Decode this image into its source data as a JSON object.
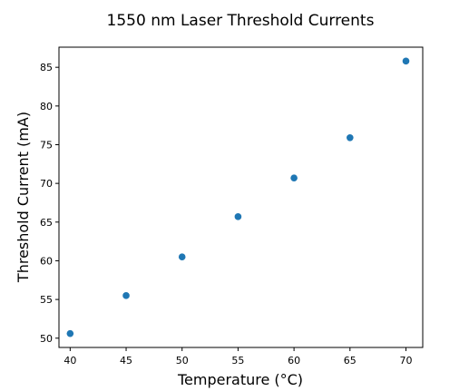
{
  "chart_data": {
    "type": "scatter",
    "title": "1550 nm Laser Threshold Currents",
    "xlabel": "Temperature (°C)",
    "ylabel": "Threshold Current (mA)",
    "xlim": [
      39,
      71.5
    ],
    "ylim": [
      48.8,
      87.6
    ],
    "xticks": [
      40,
      45,
      50,
      55,
      60,
      65,
      70
    ],
    "yticks": [
      50,
      55,
      60,
      65,
      70,
      75,
      80,
      85
    ],
    "grid": false,
    "series": [
      {
        "color": "#1f77b4",
        "x": [
          40,
          45,
          50,
          55,
          60,
          65,
          70
        ],
        "y": [
          50.6,
          55.5,
          60.5,
          65.7,
          70.7,
          75.9,
          85.8
        ]
      }
    ]
  }
}
